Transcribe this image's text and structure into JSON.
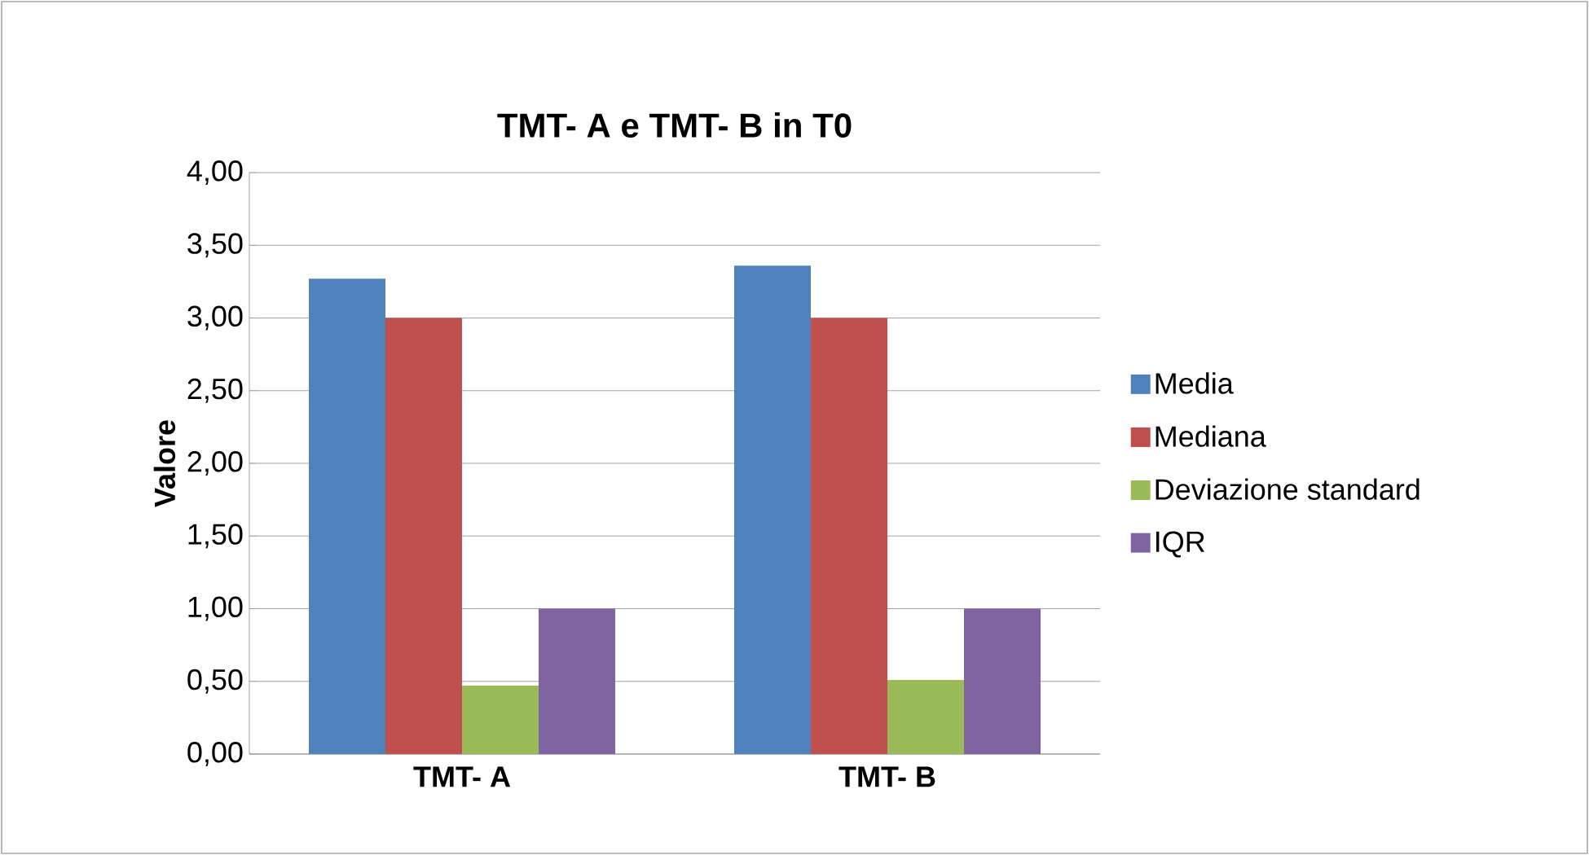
{
  "chart_data": {
    "type": "bar",
    "title": "TMT- A e TMT- B in T0",
    "ylabel": "Valore",
    "categories": [
      "TMT- A",
      "TMT- B"
    ],
    "series": [
      {
        "name": "Media",
        "color": "#4f81bd",
        "values": [
          3.27,
          3.36
        ]
      },
      {
        "name": "Mediana",
        "color": "#c0504d",
        "values": [
          3.0,
          3.0
        ]
      },
      {
        "name": "Deviazione standard",
        "color": "#9bbb59",
        "values": [
          0.47,
          0.51
        ]
      },
      {
        "name": "IQR",
        "color": "#8064a2",
        "values": [
          1.0,
          1.0
        ]
      }
    ],
    "ylim": [
      0,
      4
    ],
    "yticks": [
      {
        "value": 0,
        "label": "0,00"
      },
      {
        "value": 0.5,
        "label": "0,50"
      },
      {
        "value": 1,
        "label": "1,00"
      },
      {
        "value": 1.5,
        "label": "1,50"
      },
      {
        "value": 2,
        "label": "2,00"
      },
      {
        "value": 2.5,
        "label": "2,50"
      },
      {
        "value": 3,
        "label": "3,00"
      },
      {
        "value": 3.5,
        "label": "3,50"
      },
      {
        "value": 4,
        "label": "4,00"
      }
    ],
    "grid": "y",
    "legend": "right"
  }
}
